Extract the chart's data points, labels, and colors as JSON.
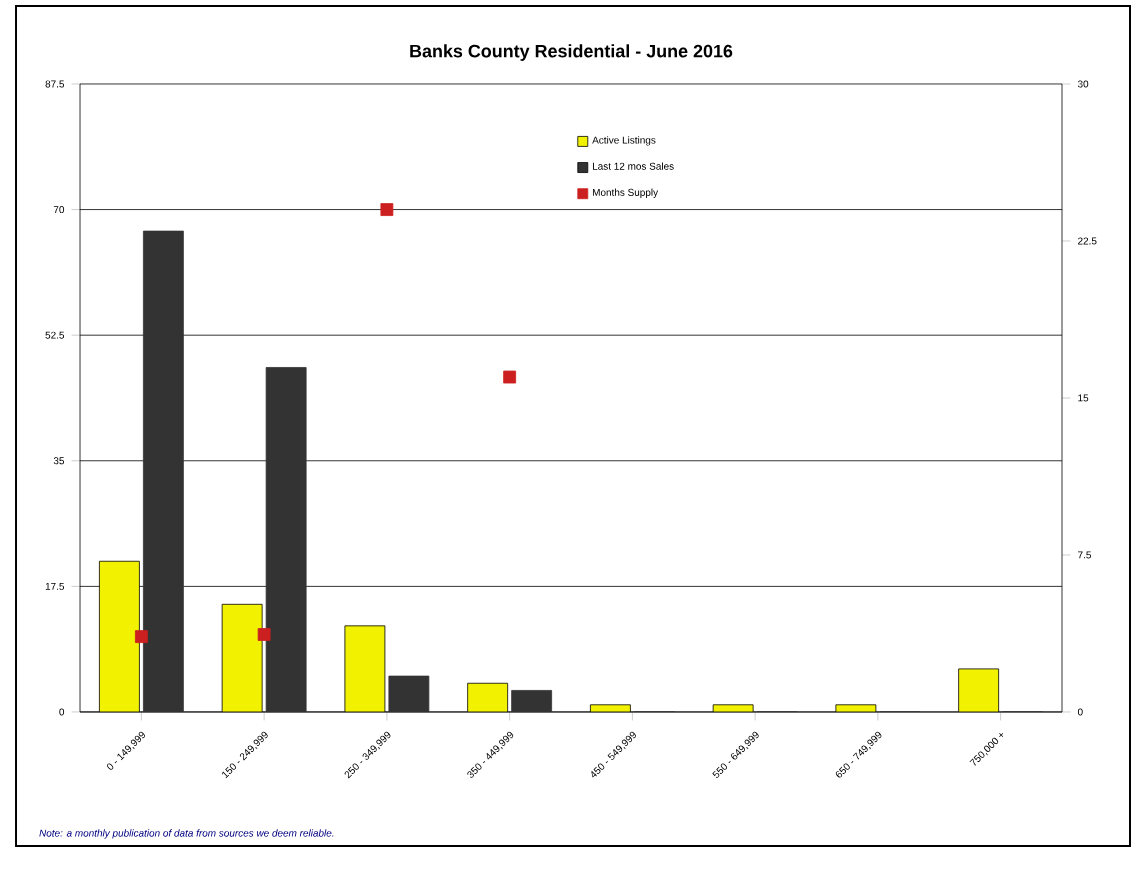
{
  "chart_data": {
    "type": "bar",
    "title": "Banks County Residential - June 2016",
    "categories": [
      "0 - 149,999",
      "150 - 249,999",
      "250 - 349,999",
      "350 - 449,999",
      "450 - 549,999",
      "550 - 649,999",
      "650 - 749,999",
      "750,000 +"
    ],
    "series": [
      {
        "name": "Active Listings",
        "type": "bar",
        "color": "#f2f200",
        "values": [
          21,
          15,
          12,
          4,
          1,
          1,
          1,
          6
        ]
      },
      {
        "name": "Last 12 mos Sales",
        "type": "bar",
        "color": "#333333",
        "values": [
          67,
          48,
          5,
          3,
          0,
          0,
          0,
          0
        ]
      },
      {
        "name": "Months Supply",
        "type": "scatter",
        "axis": "y2",
        "marker": "square",
        "color": "#cc2020",
        "values": [
          3.6,
          3.7,
          24,
          16,
          null,
          null,
          null,
          null
        ]
      }
    ],
    "ylim": [
      0,
      87.5
    ],
    "yticks": [
      0,
      17.5,
      35,
      52.5,
      70,
      87.5
    ],
    "y2lim": [
      0,
      30
    ],
    "y2ticks": [
      0,
      7.5,
      15,
      22.5,
      30
    ],
    "grid": "y",
    "legend": "top",
    "annotations": [
      "Note: a monthly publication of data from sources we deem reliable."
    ]
  }
}
